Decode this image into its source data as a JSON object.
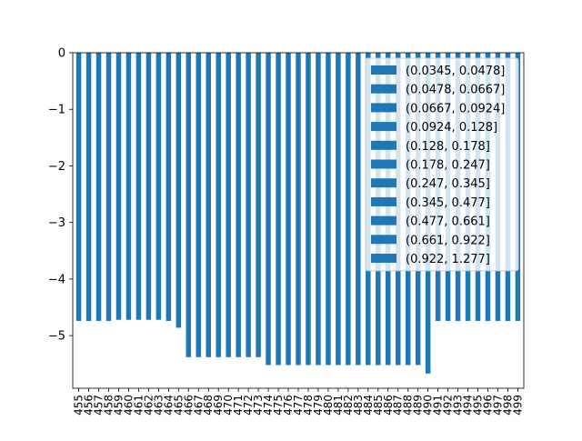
{
  "chart_data": {
    "type": "bar",
    "title": "",
    "xlabel": "",
    "ylabel": "",
    "ylim": [
      -5.93,
      0
    ],
    "yticks": [
      0,
      -1,
      -2,
      -3,
      -4,
      -5
    ],
    "ytick_labels": [
      "0",
      "−1",
      "−2",
      "−3",
      "−4",
      "−5"
    ],
    "bar_color": "#1f77b4",
    "legend_position": "top-right",
    "legend": [
      "(0.0345, 0.0478]",
      "(0.0478, 0.0667]",
      "(0.0667, 0.0924]",
      "(0.0924, 0.128]",
      "(0.128, 0.178]",
      "(0.178, 0.247]",
      "(0.247, 0.345]",
      "(0.345, 0.477]",
      "(0.477, 0.661]",
      "(0.661, 0.922]",
      "(0.922, 1.277]"
    ],
    "categories": [
      "455",
      "456",
      "457",
      "458",
      "459",
      "460",
      "461",
      "462",
      "463",
      "464",
      "465",
      "466",
      "467",
      "468",
      "469",
      "470",
      "471",
      "472",
      "473",
      "474",
      "475",
      "476",
      "477",
      "478",
      "479",
      "480",
      "481",
      "482",
      "483",
      "484",
      "485",
      "486",
      "487",
      "488",
      "489",
      "490",
      "491",
      "492",
      "493",
      "494",
      "495",
      "496",
      "497",
      "498",
      "499"
    ],
    "values": [
      -4.74,
      -4.74,
      -4.74,
      -4.74,
      -4.72,
      -4.72,
      -4.72,
      -4.72,
      -4.72,
      -4.74,
      -4.86,
      -5.38,
      -5.38,
      -5.38,
      -5.38,
      -5.38,
      -5.38,
      -5.38,
      -5.38,
      -5.52,
      -5.52,
      -5.52,
      -5.52,
      -5.52,
      -5.52,
      -5.52,
      -5.52,
      -5.52,
      -5.52,
      -5.52,
      -5.52,
      -5.52,
      -5.52,
      -5.52,
      -5.52,
      -5.67,
      -4.74,
      -4.74,
      -4.74,
      -4.74,
      -4.74,
      -4.74,
      -4.74,
      -4.74,
      -4.74
    ]
  }
}
